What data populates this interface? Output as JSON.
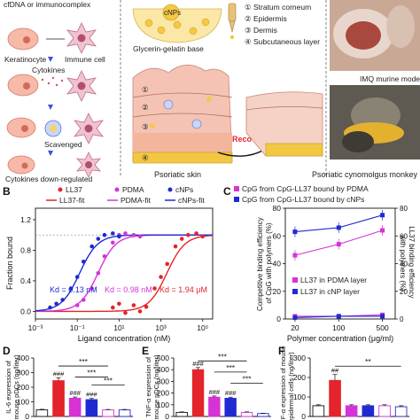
{
  "panel_a": {
    "top_cut_text": "cfDNA or immunocomplex",
    "keratinocyte": "Keratinocyte",
    "immune_cell": "Immune cell",
    "cytokines": "Cytokines",
    "scavenged": "Scavenged",
    "cytokines_down": "Cytokines down-regulated",
    "cnps": "cNPs",
    "glycerin_base": "Glycerin-gelatin base",
    "layer_labels": [
      "① Stratum corneum",
      "② Epidermis",
      "③ Dermis",
      "④ Subcutaneous layer"
    ],
    "skin_numbers": [
      "①",
      "②",
      "③",
      "④"
    ],
    "psoriatic_skin": "Psoriatic skin",
    "recovery": "Recovery",
    "imq_model": "IMQ murine model",
    "cynomolgus": "Psoriatic cynomolgus monkey"
  },
  "panel_labels": [
    "B",
    "C",
    "D",
    "E",
    "F"
  ],
  "colors": {
    "ll37": "#e3242b",
    "pdma": "#d633d6",
    "cnps": "#1f2bd1",
    "black": "#111111"
  },
  "chart_data": [
    {
      "panel": "B",
      "type": "scatter",
      "xlabel": "Ligand concentration (nM)",
      "ylabel": "Fraction bound",
      "x_scale": "log",
      "xlim": [
        0.001,
        300000
      ],
      "ylim": [
        -0.1,
        1.35
      ],
      "x_tick_labels": [
        "10⁻³",
        "10⁻¹",
        "10¹",
        "10³",
        "10⁵"
      ],
      "y_ticks": [
        0.0,
        0.4,
        0.8,
        1.2
      ],
      "y_tick_labels": [
        "0.0",
        "0.4",
        "0.8",
        "1.2"
      ],
      "legend": [
        "LL37",
        "PDMA",
        "cNPs",
        "LL37-fit",
        "PDMA-fit",
        "cNPs-fit"
      ],
      "legend_position": "top",
      "series": [
        {
          "name": "LL37",
          "kd": 1940,
          "kd_label": "Kd = 1.94 μM",
          "color": "#e3242b",
          "points": [
            [
              5,
              0.05
            ],
            [
              10,
              0.1
            ],
            [
              20,
              -0.02
            ],
            [
              50,
              0.08
            ],
            [
              100,
              0.0
            ],
            [
              200,
              0.06
            ],
            [
              500,
              0.3
            ],
            [
              1000,
              0.45
            ],
            [
              2000,
              0.62
            ],
            [
              5000,
              0.85
            ],
            [
              10000,
              0.95
            ],
            [
              20000,
              1.0
            ],
            [
              50000,
              1.02
            ],
            [
              100000,
              0.98
            ]
          ]
        },
        {
          "name": "PDMA",
          "kd": 0.98,
          "kd_label": "Kd = 0.98 nM",
          "color": "#d633d6",
          "points": [
            [
              0.1,
              0.08
            ],
            [
              0.2,
              0.15
            ],
            [
              0.5,
              0.3
            ],
            [
              1,
              0.5
            ],
            [
              2,
              0.72
            ],
            [
              5,
              0.9
            ],
            [
              10,
              1.0
            ],
            [
              20,
              1.02
            ],
            [
              50,
              1.0
            ],
            [
              100,
              0.98
            ]
          ]
        },
        {
          "name": "cNPs",
          "kd": 0.13,
          "kd_label": "Kd = 0.13 nM",
          "color": "#1f2bd1",
          "points": [
            [
              0.005,
              0.05
            ],
            [
              0.01,
              0.1
            ],
            [
              0.02,
              0.15
            ],
            [
              0.05,
              0.3
            ],
            [
              0.1,
              0.45
            ],
            [
              0.2,
              0.65
            ],
            [
              0.5,
              0.85
            ],
            [
              1,
              0.95
            ],
            [
              2,
              1.0
            ],
            [
              5,
              1.02
            ],
            [
              10,
              0.98
            ]
          ]
        }
      ]
    },
    {
      "panel": "C",
      "type": "line",
      "xlabel": "Polymer concentration (μg/ml)",
      "ylabel": "Competitive binding efficiency of CpG with polymers (%)",
      "y2label": "LL37 binding efficiency with polymers (%)",
      "x_scale": "log",
      "xlim": [
        14,
        800
      ],
      "ylim": [
        0,
        80
      ],
      "y2lim": [
        0,
        80
      ],
      "x_tick_labels": [
        "20",
        "100",
        "500"
      ],
      "y_ticks": [
        0,
        20,
        40,
        60,
        80
      ],
      "y2_ticks": [
        0,
        20,
        40,
        60,
        80
      ],
      "legend_top": [
        "CpG from CpG-LL37 bound by PDMA",
        "CpG from CpG-LL37 bound by cNPs"
      ],
      "legend_bottom": [
        "LL37 in PDMA layer",
        "LL37 in cNP layer"
      ],
      "series": [
        {
          "name": "CpG from CpG-LL37 bound by PDMA",
          "color": "#d633d6",
          "x": [
            20,
            100,
            500
          ],
          "values": [
            46,
            54,
            64
          ]
        },
        {
          "name": "CpG from CpG-LL37 bound by cNPs",
          "color": "#1f2bd1",
          "x": [
            20,
            100,
            500
          ],
          "values": [
            63,
            66,
            75
          ]
        },
        {
          "name": "LL37 in PDMA layer",
          "color": "#d633d6",
          "x": [
            20,
            100,
            500
          ],
          "values": [
            2,
            2,
            3
          ]
        },
        {
          "name": "LL37 in cNP layer",
          "color": "#1f2bd1",
          "x": [
            20,
            100,
            500
          ],
          "values": [
            1,
            2,
            2
          ]
        }
      ]
    },
    {
      "panel": "D",
      "type": "bar",
      "ylabel": "IL-6 expression of mouse pDCs (ng/liter)",
      "ylim": [
        0,
        400
      ],
      "y_ticks": [
        0,
        100,
        200,
        300,
        400
      ],
      "values": [
        45,
        245,
        125,
        115,
        45,
        45
      ],
      "errors": [
        4,
        20,
        8,
        8,
        3,
        3
      ],
      "colors": [
        "#ffffff",
        "#e3242b",
        "#d633d6",
        "#1f2bd1",
        "#ffffff",
        "#ffffff"
      ],
      "edge_colors": [
        "#111111",
        "#e3242b",
        "#d633d6",
        "#1f2bd1",
        "#d633d6",
        "#1f2bd1"
      ],
      "marks": [
        "",
        "###",
        "###",
        "###",
        "",
        ""
      ],
      "sig_labels": [
        "***",
        "***",
        "***"
      ]
    },
    {
      "panel": "E",
      "type": "bar",
      "ylabel": "TNF-α expression of mouse pDCs (ng/liter)",
      "ylim": [
        0,
        500
      ],
      "y_ticks": [
        0,
        100,
        200,
        300,
        400,
        500
      ],
      "values": [
        35,
        400,
        165,
        155,
        35,
        25
      ],
      "errors": [
        4,
        18,
        10,
        10,
        4,
        3
      ],
      "colors": [
        "#ffffff",
        "#e3242b",
        "#d633d6",
        "#1f2bd1",
        "#ffffff",
        "#ffffff"
      ],
      "edge_colors": [
        "#111111",
        "#e3242b",
        "#d633d6",
        "#1f2bd1",
        "#d633d6",
        "#1f2bd1"
      ],
      "marks": [
        "",
        "###",
        "###",
        "###",
        "",
        ""
      ],
      "sig_labels": [
        "***",
        "***",
        "***"
      ]
    },
    {
      "panel": "F",
      "type": "bar",
      "ylabel": "TNF-α expression of mouse epidermal cells (ng/liter)",
      "ylim": [
        0,
        300
      ],
      "y_ticks": [
        0,
        100,
        200,
        300
      ],
      "values": [
        55,
        185,
        55,
        55,
        55,
        50
      ],
      "errors": [
        5,
        30,
        5,
        5,
        5,
        5
      ],
      "colors": [
        "#ffffff",
        "#e3242b",
        "#d633d6",
        "#1f2bd1",
        "#ffffff",
        "#ffffff"
      ],
      "edge_colors": [
        "#111111",
        "#e3242b",
        "#d633d6",
        "#1f2bd1",
        "#d633d6",
        "#1f2bd1"
      ],
      "marks": [
        "",
        "##",
        "",
        "",
        "",
        ""
      ],
      "sig_labels": [
        "**"
      ]
    }
  ]
}
